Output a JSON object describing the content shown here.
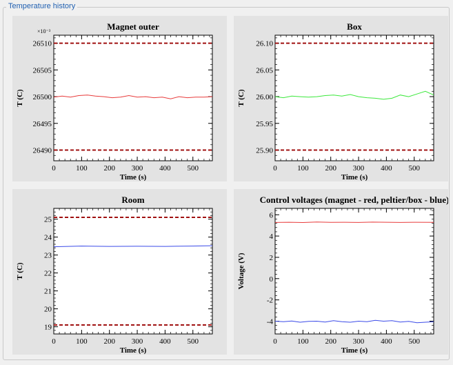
{
  "group": {
    "title": "Temperature history"
  },
  "colors": {
    "red": "#e83a3a",
    "limit": "#a01010",
    "green": "#3ae83a",
    "blue": "#3a4ae8"
  },
  "chart_data": [
    {
      "type": "line",
      "title": "Magnet outer",
      "xlabel": "Time (s)",
      "ylabel": "T (C)",
      "y_exponent_label": "×10⁻³",
      "xlim": [
        0,
        570
      ],
      "ylim": [
        26.488,
        26.5115
      ],
      "xticks": [
        0,
        100,
        200,
        300,
        400,
        500
      ],
      "yticks": [
        26.49,
        26.495,
        26.5,
        26.505,
        26.51
      ],
      "ytick_labels": [
        "26490",
        "26495",
        "26500",
        "26505",
        "26510"
      ],
      "limits": [
        26.51,
        26.49
      ],
      "series": [
        {
          "color": "#e83a3a",
          "x": [
            0,
            30,
            60,
            90,
            120,
            150,
            180,
            210,
            240,
            270,
            300,
            330,
            360,
            390,
            420,
            450,
            480,
            510,
            540,
            570
          ],
          "y": [
            26.4999,
            26.5001,
            26.4999,
            26.5002,
            26.5003,
            26.5001,
            26.5,
            26.4998,
            26.4999,
            26.5002,
            26.4999,
            26.5,
            26.4998,
            26.4999,
            26.4996,
            26.5,
            26.4998,
            26.4999,
            26.4999,
            26.5
          ]
        }
      ]
    },
    {
      "type": "line",
      "title": "Box",
      "xlabel": "Time (s)",
      "ylabel": "T (C)",
      "xlim": [
        0,
        570
      ],
      "ylim": [
        25.88,
        26.115
      ],
      "xticks": [
        0,
        100,
        200,
        300,
        400,
        500
      ],
      "yticks": [
        25.9,
        25.95,
        26.0,
        26.05,
        26.1
      ],
      "ytick_labels": [
        "25.90",
        "25.95",
        "26.00",
        "26.05",
        "26.10"
      ],
      "limits": [
        26.1,
        25.9
      ],
      "series": [
        {
          "color": "#3ae83a",
          "x": [
            0,
            30,
            60,
            90,
            120,
            150,
            180,
            210,
            240,
            270,
            300,
            330,
            360,
            390,
            420,
            450,
            480,
            510,
            540,
            570
          ],
          "y": [
            26.0,
            25.998,
            26.001,
            26.0,
            25.999,
            26.0,
            26.002,
            26.003,
            26.001,
            26.004,
            26.0,
            25.998,
            25.997,
            25.995,
            25.997,
            26.003,
            26.0,
            26.005,
            26.01,
            26.003
          ]
        }
      ]
    },
    {
      "type": "line",
      "title": "Room",
      "xlabel": "Time (s)",
      "ylabel": "T (C)",
      "xlim": [
        0,
        570
      ],
      "ylim": [
        18.6,
        25.6
      ],
      "xticks": [
        0,
        100,
        200,
        300,
        400,
        500
      ],
      "yticks": [
        19,
        20,
        21,
        22,
        23,
        24,
        25
      ],
      "ytick_labels": [
        "19",
        "20",
        "21",
        "22",
        "23",
        "24",
        "25"
      ],
      "limits": [
        25.1,
        19.1
      ],
      "series": [
        {
          "color": "#3a4ae8",
          "x": [
            0,
            100,
            200,
            300,
            400,
            500,
            570
          ],
          "y": [
            23.46,
            23.5,
            23.48,
            23.49,
            23.48,
            23.5,
            23.52
          ]
        }
      ]
    },
    {
      "type": "line",
      "title": "Control voltages (magnet - red, peltier/box - blue)",
      "xlabel": "Time (s)",
      "ylabel": "Voltage (V)",
      "xlim": [
        0,
        570
      ],
      "ylim": [
        -5.2,
        6.6
      ],
      "xticks": [
        0,
        100,
        200,
        300,
        400,
        500
      ],
      "yticks": [
        -4,
        -2,
        0,
        2,
        4,
        6
      ],
      "ytick_labels": [
        "-4",
        "-2",
        "0",
        "2",
        "4",
        "6"
      ],
      "limits": [],
      "series": [
        {
          "color": "#e83a3a",
          "x": [
            0,
            50,
            100,
            150,
            200,
            250,
            300,
            350,
            400,
            450,
            500,
            570
          ],
          "y": [
            5.28,
            5.3,
            5.27,
            5.32,
            5.29,
            5.3,
            5.28,
            5.31,
            5.3,
            5.28,
            5.3,
            5.29
          ]
        },
        {
          "color": "#3a4ae8",
          "x": [
            0,
            30,
            60,
            90,
            120,
            150,
            180,
            210,
            240,
            270,
            300,
            330,
            360,
            390,
            420,
            450,
            480,
            510,
            540,
            570
          ],
          "y": [
            -4.0,
            -4.05,
            -3.98,
            -4.1,
            -4.02,
            -4.0,
            -4.08,
            -3.95,
            -4.05,
            -4.1,
            -4.0,
            -4.05,
            -3.92,
            -4.0,
            -3.95,
            -4.08,
            -4.02,
            -4.15,
            -4.1,
            -4.05
          ]
        }
      ]
    }
  ]
}
